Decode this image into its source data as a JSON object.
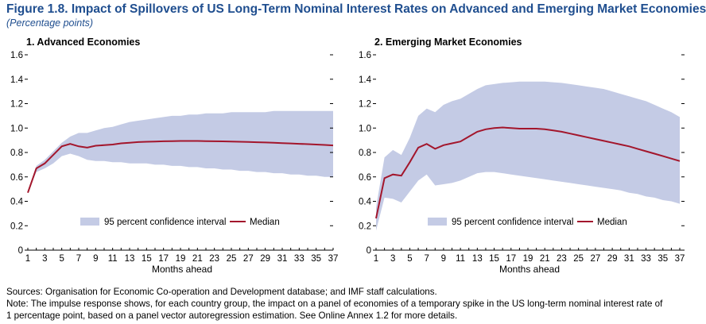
{
  "figure": {
    "title": "Figure 1.8. Impact of Spillovers of US Long-Term Nominal Interest Rates on Advanced and Emerging Market Economies",
    "subtitle": "(Percentage points)"
  },
  "colors": {
    "title": "#1f4e8f",
    "band": "#c4cbe5",
    "median": "#a3162c",
    "axis": "#000000"
  },
  "chart_data": [
    {
      "type": "area",
      "title": "1. Advanced Economies",
      "xlabel": "Months ahead",
      "ylabel": "",
      "xlim": [
        1,
        37
      ],
      "ylim": [
        0,
        1.6
      ],
      "xticks": [
        1,
        3,
        5,
        7,
        9,
        11,
        13,
        15,
        17,
        19,
        21,
        23,
        25,
        27,
        29,
        31,
        33,
        35,
        37
      ],
      "yticks": [
        0,
        0.2,
        0.4,
        0.6,
        0.8,
        1.0,
        1.2,
        1.4,
        1.6
      ],
      "ytick_labels": [
        "0",
        "0.2",
        "0.4",
        "0.6",
        "0.8",
        "1.0",
        "1.2",
        "1.4",
        "1.6"
      ],
      "grid": false,
      "legend_position": "bottom-center",
      "series": [
        {
          "name": "95 percent confidence interval",
          "kind": "band",
          "x": [
            1,
            2,
            3,
            4,
            5,
            6,
            7,
            8,
            9,
            10,
            11,
            12,
            13,
            14,
            15,
            16,
            17,
            18,
            19,
            20,
            21,
            22,
            23,
            24,
            25,
            26,
            27,
            28,
            29,
            30,
            31,
            32,
            33,
            34,
            35,
            36,
            37
          ],
          "lower": [
            0.47,
            0.64,
            0.67,
            0.71,
            0.77,
            0.79,
            0.77,
            0.74,
            0.73,
            0.73,
            0.72,
            0.72,
            0.71,
            0.71,
            0.71,
            0.7,
            0.7,
            0.69,
            0.69,
            0.68,
            0.68,
            0.67,
            0.67,
            0.66,
            0.66,
            0.65,
            0.65,
            0.64,
            0.64,
            0.63,
            0.63,
            0.62,
            0.62,
            0.61,
            0.61,
            0.6,
            0.6
          ],
          "upper": [
            0.47,
            0.69,
            0.74,
            0.81,
            0.88,
            0.93,
            0.96,
            0.96,
            0.98,
            1.0,
            1.01,
            1.03,
            1.05,
            1.06,
            1.07,
            1.08,
            1.09,
            1.1,
            1.1,
            1.11,
            1.11,
            1.12,
            1.12,
            1.12,
            1.13,
            1.13,
            1.13,
            1.13,
            1.13,
            1.14,
            1.14,
            1.14,
            1.14,
            1.14,
            1.14,
            1.14,
            1.14
          ]
        },
        {
          "name": "Median",
          "kind": "line",
          "x": [
            1,
            2,
            3,
            4,
            5,
            6,
            7,
            8,
            9,
            10,
            11,
            12,
            13,
            14,
            15,
            16,
            17,
            18,
            19,
            20,
            21,
            22,
            23,
            24,
            25,
            26,
            27,
            28,
            29,
            30,
            31,
            32,
            33,
            34,
            35,
            36,
            37
          ],
          "values": [
            0.47,
            0.67,
            0.71,
            0.78,
            0.85,
            0.87,
            0.85,
            0.84,
            0.855,
            0.86,
            0.865,
            0.875,
            0.88,
            0.885,
            0.888,
            0.89,
            0.892,
            0.893,
            0.894,
            0.894,
            0.894,
            0.893,
            0.892,
            0.891,
            0.89,
            0.888,
            0.886,
            0.884,
            0.882,
            0.88,
            0.877,
            0.874,
            0.871,
            0.868,
            0.865,
            0.862,
            0.858
          ]
        }
      ]
    },
    {
      "type": "area",
      "title": "2. Emerging Market Economies",
      "xlabel": "Months ahead",
      "ylabel": "",
      "xlim": [
        1,
        37
      ],
      "ylim": [
        0,
        1.6
      ],
      "xticks": [
        1,
        3,
        5,
        7,
        9,
        11,
        13,
        15,
        17,
        19,
        21,
        23,
        25,
        27,
        29,
        31,
        33,
        35,
        37
      ],
      "yticks": [
        0,
        0.2,
        0.4,
        0.6,
        0.8,
        1.0,
        1.2,
        1.4,
        1.6
      ],
      "ytick_labels": [
        "0",
        "0.2",
        "0.4",
        "0.6",
        "0.8",
        "1.0",
        "1.2",
        "1.4",
        "1.6"
      ],
      "grid": false,
      "legend_position": "bottom-center",
      "series": [
        {
          "name": "95 percent confidence interval",
          "kind": "band",
          "x": [
            1,
            2,
            3,
            4,
            5,
            6,
            7,
            8,
            9,
            10,
            11,
            12,
            13,
            14,
            15,
            16,
            17,
            18,
            19,
            20,
            21,
            22,
            23,
            24,
            25,
            26,
            27,
            28,
            29,
            30,
            31,
            32,
            33,
            34,
            35,
            36,
            37
          ],
          "lower": [
            0.16,
            0.43,
            0.42,
            0.39,
            0.48,
            0.57,
            0.62,
            0.53,
            0.54,
            0.55,
            0.57,
            0.6,
            0.63,
            0.64,
            0.64,
            0.63,
            0.62,
            0.61,
            0.6,
            0.59,
            0.58,
            0.57,
            0.56,
            0.55,
            0.54,
            0.53,
            0.52,
            0.51,
            0.5,
            0.49,
            0.47,
            0.46,
            0.44,
            0.43,
            0.41,
            0.4,
            0.38
          ],
          "upper": [
            0.35,
            0.76,
            0.82,
            0.78,
            0.92,
            1.1,
            1.16,
            1.13,
            1.19,
            1.22,
            1.24,
            1.28,
            1.32,
            1.35,
            1.36,
            1.37,
            1.375,
            1.38,
            1.38,
            1.38,
            1.38,
            1.375,
            1.37,
            1.36,
            1.35,
            1.34,
            1.33,
            1.32,
            1.3,
            1.28,
            1.26,
            1.24,
            1.22,
            1.19,
            1.16,
            1.13,
            1.09
          ]
        },
        {
          "name": "Median",
          "kind": "line",
          "x": [
            1,
            2,
            3,
            4,
            5,
            6,
            7,
            8,
            9,
            10,
            11,
            12,
            13,
            14,
            15,
            16,
            17,
            18,
            19,
            20,
            21,
            22,
            23,
            24,
            25,
            26,
            27,
            28,
            29,
            30,
            31,
            32,
            33,
            34,
            35,
            36,
            37
          ],
          "values": [
            0.26,
            0.59,
            0.62,
            0.61,
            0.72,
            0.84,
            0.87,
            0.83,
            0.86,
            0.875,
            0.89,
            0.93,
            0.97,
            0.99,
            1.0,
            1.005,
            1.0,
            0.995,
            0.995,
            0.995,
            0.99,
            0.98,
            0.97,
            0.955,
            0.94,
            0.925,
            0.91,
            0.895,
            0.88,
            0.865,
            0.85,
            0.83,
            0.81,
            0.79,
            0.77,
            0.75,
            0.73
          ]
        }
      ]
    }
  ],
  "legend": {
    "band_label": "95 percent confidence interval",
    "line_label": "Median"
  },
  "notes": {
    "sources": "Sources: Organisation for Economic Co-operation and Development database; and IMF staff calculations.",
    "note_line1": "Note: The impulse response shows, for each country group, the impact on a panel of economies of a temporary spike in the US long-term nominal interest rate of",
    "note_line2": "1 percentage point, based on a panel vector autoregression estimation. See Online Annex 1.2 for more details."
  }
}
